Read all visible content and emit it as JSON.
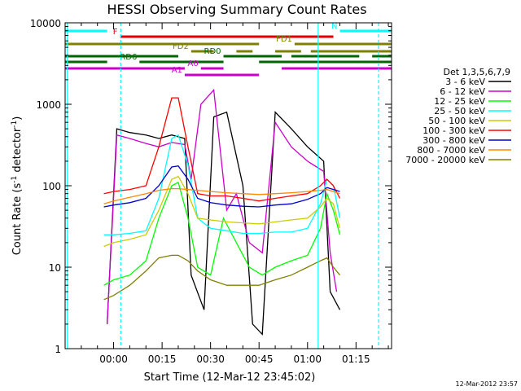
{
  "chart_data": {
    "type": "line",
    "title": "HESSI Observing Summary Count Rates",
    "xlabel": "Start Time (12-Mar-12 23:45:02)",
    "ylabel_main": "Count Rate (s",
    "ylabel_sup1": "-1",
    "ylabel_mid": " detector",
    "ylabel_sup2": "-1",
    "ylabel_end": ")",
    "yscale": "log",
    "ylim": [
      1,
      10000
    ],
    "xlim_minutes": [
      -15,
      86
    ],
    "x_ticks": [
      {
        "m": 0,
        "label": "00:00"
      },
      {
        "m": 15,
        "label": "00:15"
      },
      {
        "m": 30,
        "label": "00:30"
      },
      {
        "m": 45,
        "label": "00:45"
      },
      {
        "m": 60,
        "label": "01:00"
      },
      {
        "m": 75,
        "label": "01:15"
      }
    ],
    "y_ticks": [
      {
        "v": 1,
        "label": "1"
      },
      {
        "v": 10,
        "label": "10"
      },
      {
        "v": 100,
        "label": "100"
      },
      {
        "v": 1000,
        "label": "1000"
      },
      {
        "v": 10000,
        "label": "10000"
      }
    ],
    "legend_title": "Det 1,3,5,6,7,9",
    "legend_position": "right",
    "series": [
      {
        "name": "3 - 6 keV",
        "color": "#000000",
        "points": [
          [
            -2,
            2
          ],
          [
            1,
            500
          ],
          [
            5,
            450
          ],
          [
            10,
            420
          ],
          [
            14,
            380
          ],
          [
            18,
            420
          ],
          [
            22,
            380
          ],
          [
            24,
            8
          ],
          [
            28,
            3
          ],
          [
            31,
            700
          ],
          [
            35,
            800
          ],
          [
            40,
            100
          ],
          [
            43,
            2
          ],
          [
            46,
            1.5
          ],
          [
            50,
            800
          ],
          [
            55,
            500
          ],
          [
            60,
            300
          ],
          [
            65,
            200
          ],
          [
            67,
            5
          ],
          [
            70,
            3
          ]
        ]
      },
      {
        "name": "6 - 12 keV",
        "color": "#cc00cc",
        "points": [
          [
            -2,
            2
          ],
          [
            1,
            420
          ],
          [
            5,
            380
          ],
          [
            10,
            330
          ],
          [
            14,
            300
          ],
          [
            18,
            340
          ],
          [
            22,
            320
          ],
          [
            24,
            120
          ],
          [
            27,
            1000
          ],
          [
            31,
            1500
          ],
          [
            35,
            50
          ],
          [
            38,
            80
          ],
          [
            42,
            20
          ],
          [
            46,
            15
          ],
          [
            50,
            600
          ],
          [
            55,
            300
          ],
          [
            60,
            200
          ],
          [
            65,
            150
          ],
          [
            67,
            15
          ],
          [
            69,
            5
          ]
        ]
      },
      {
        "name": "12 - 25 keV",
        "color": "#00ff00",
        "points": [
          [
            -3,
            6
          ],
          [
            0,
            7
          ],
          [
            5,
            8
          ],
          [
            10,
            12
          ],
          [
            14,
            40
          ],
          [
            18,
            100
          ],
          [
            20,
            110
          ],
          [
            23,
            40
          ],
          [
            26,
            10
          ],
          [
            30,
            8
          ],
          [
            34,
            40
          ],
          [
            38,
            20
          ],
          [
            42,
            10
          ],
          [
            46,
            8
          ],
          [
            50,
            10
          ],
          [
            55,
            12
          ],
          [
            60,
            14
          ],
          [
            64,
            30
          ],
          [
            66,
            80
          ],
          [
            68,
            50
          ],
          [
            70,
            25
          ]
        ]
      },
      {
        "name": "25 - 50 keV",
        "color": "#00ffff",
        "points": [
          [
            -3,
            25
          ],
          [
            0,
            25
          ],
          [
            5,
            26
          ],
          [
            10,
            28
          ],
          [
            14,
            70
          ],
          [
            18,
            380
          ],
          [
            20,
            420
          ],
          [
            23,
            180
          ],
          [
            26,
            40
          ],
          [
            30,
            30
          ],
          [
            35,
            28
          ],
          [
            40,
            26
          ],
          [
            45,
            26
          ],
          [
            50,
            27
          ],
          [
            55,
            27
          ],
          [
            60,
            30
          ],
          [
            64,
            60
          ],
          [
            66,
            120
          ],
          [
            68,
            100
          ],
          [
            70,
            40
          ]
        ]
      },
      {
        "name": "50 - 100 keV",
        "color": "#cccc00",
        "points": [
          [
            -3,
            18
          ],
          [
            0,
            20
          ],
          [
            5,
            22
          ],
          [
            10,
            25
          ],
          [
            14,
            50
          ],
          [
            18,
            120
          ],
          [
            20,
            130
          ],
          [
            23,
            80
          ],
          [
            26,
            40
          ],
          [
            30,
            38
          ],
          [
            35,
            36
          ],
          [
            40,
            35
          ],
          [
            45,
            34
          ],
          [
            50,
            36
          ],
          [
            55,
            38
          ],
          [
            60,
            40
          ],
          [
            64,
            55
          ],
          [
            66,
            70
          ],
          [
            68,
            60
          ],
          [
            70,
            30
          ]
        ]
      },
      {
        "name": "100 - 300 keV",
        "color": "#ff0000",
        "points": [
          [
            -3,
            80
          ],
          [
            0,
            85
          ],
          [
            5,
            90
          ],
          [
            10,
            100
          ],
          [
            14,
            300
          ],
          [
            18,
            1200
          ],
          [
            20,
            1200
          ],
          [
            23,
            300
          ],
          [
            26,
            80
          ],
          [
            30,
            75
          ],
          [
            35,
            75
          ],
          [
            40,
            70
          ],
          [
            45,
            65
          ],
          [
            50,
            70
          ],
          [
            55,
            75
          ],
          [
            60,
            80
          ],
          [
            64,
            100
          ],
          [
            66,
            120
          ],
          [
            68,
            100
          ],
          [
            70,
            70
          ]
        ]
      },
      {
        "name": "300 - 800 keV",
        "color": "#0000cc",
        "points": [
          [
            -3,
            55
          ],
          [
            0,
            58
          ],
          [
            5,
            62
          ],
          [
            10,
            70
          ],
          [
            14,
            100
          ],
          [
            18,
            170
          ],
          [
            20,
            175
          ],
          [
            23,
            120
          ],
          [
            26,
            70
          ],
          [
            30,
            62
          ],
          [
            35,
            58
          ],
          [
            40,
            56
          ],
          [
            45,
            55
          ],
          [
            50,
            58
          ],
          [
            55,
            60
          ],
          [
            60,
            68
          ],
          [
            64,
            80
          ],
          [
            66,
            95
          ],
          [
            68,
            90
          ],
          [
            70,
            85
          ]
        ]
      },
      {
        "name": "800 - 7000 keV",
        "color": "#ff8800",
        "points": [
          [
            -3,
            60
          ],
          [
            0,
            65
          ],
          [
            5,
            72
          ],
          [
            10,
            80
          ],
          [
            14,
            88
          ],
          [
            18,
            92
          ],
          [
            20,
            92
          ],
          [
            23,
            90
          ],
          [
            26,
            88
          ],
          [
            30,
            85
          ],
          [
            35,
            82
          ],
          [
            40,
            80
          ],
          [
            45,
            78
          ],
          [
            50,
            80
          ],
          [
            55,
            82
          ],
          [
            60,
            85
          ],
          [
            64,
            88
          ],
          [
            66,
            90
          ],
          [
            68,
            85
          ],
          [
            70,
            80
          ]
        ]
      },
      {
        "name": "7000 - 20000 keV",
        "color": "#808000",
        "points": [
          [
            -3,
            4
          ],
          [
            0,
            4.5
          ],
          [
            5,
            6
          ],
          [
            10,
            9
          ],
          [
            14,
            13
          ],
          [
            18,
            14
          ],
          [
            20,
            14
          ],
          [
            23,
            12
          ],
          [
            26,
            9
          ],
          [
            30,
            7
          ],
          [
            35,
            6
          ],
          [
            40,
            6
          ],
          [
            45,
            6
          ],
          [
            50,
            7
          ],
          [
            55,
            8
          ],
          [
            60,
            10
          ],
          [
            64,
            12
          ],
          [
            66,
            13
          ],
          [
            68,
            10
          ],
          [
            70,
            8
          ]
        ]
      }
    ],
    "flag_bars": [
      {
        "label": "N",
        "color": "#00ffff",
        "y": 10,
        "segments": [
          [
            -15,
            -2
          ],
          [
            70,
            86
          ]
        ]
      },
      {
        "label": "F",
        "color": "#dd0000",
        "y": 17,
        "segments": [
          [
            2,
            68
          ]
        ]
      },
      {
        "label": "FD1",
        "color": "#808000",
        "y": 26,
        "segments": [
          [
            -15,
            45
          ],
          [
            56,
            86
          ]
        ]
      },
      {
        "label": "FD2",
        "color": "#808000",
        "y": 35,
        "segments": [
          [
            24,
            31
          ],
          [
            38,
            43
          ],
          [
            50,
            58
          ],
          [
            61,
            86
          ]
        ]
      },
      {
        "label": "RD0",
        "color": "#006600",
        "y": 41,
        "segments": [
          [
            -15,
            20
          ],
          [
            34,
            52
          ],
          [
            55,
            76
          ],
          [
            80,
            86
          ]
        ]
      },
      {
        "label": "RD6",
        "color": "#006600",
        "y": 48,
        "segments": [
          [
            -15,
            -2
          ],
          [
            8,
            34
          ],
          [
            45,
            86
          ]
        ]
      },
      {
        "label": "A0",
        "color": "#cc00cc",
        "y": 56,
        "segments": [
          [
            -15,
            22
          ],
          [
            27,
            34
          ],
          [
            52,
            86
          ]
        ]
      },
      {
        "label": "A1",
        "color": "#cc00cc",
        "y": 64,
        "segments": [
          [
            22,
            45
          ]
        ]
      }
    ],
    "vlines": [
      {
        "m": -14.3,
        "color": "#00ffff",
        "style": "solid"
      },
      {
        "m": 2.2,
        "color": "#00ffff",
        "style": "dashed"
      },
      {
        "m": 63.3,
        "color": "#00ffff",
        "style": "solid"
      },
      {
        "m": 82,
        "color": "#00ffff",
        "style": "dashed"
      }
    ]
  },
  "timestamp": "12-Mar-2012 23:57"
}
